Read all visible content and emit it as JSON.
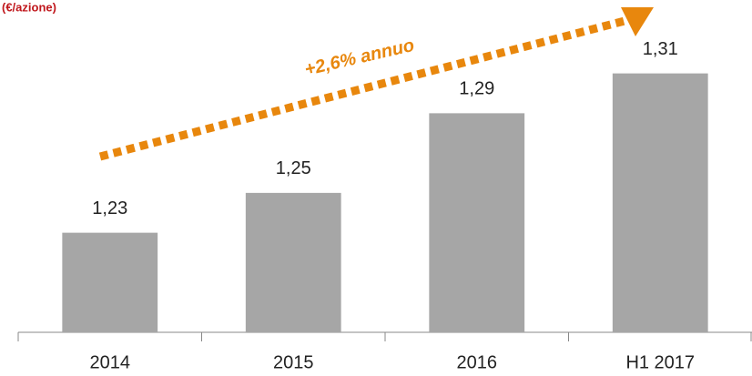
{
  "chart_data": {
    "type": "bar",
    "title": "(€/azione)",
    "annotation": "+2,6% annuo",
    "categories": [
      "2014",
      "2015",
      "2016",
      "H1 2017"
    ],
    "values": [
      1.23,
      1.25,
      1.29,
      1.31
    ],
    "value_labels": [
      "1,23",
      "1,25",
      "1,29",
      "1,31"
    ],
    "color": "#a6a6a6",
    "ylim": [
      1.18,
      1.34
    ]
  }
}
